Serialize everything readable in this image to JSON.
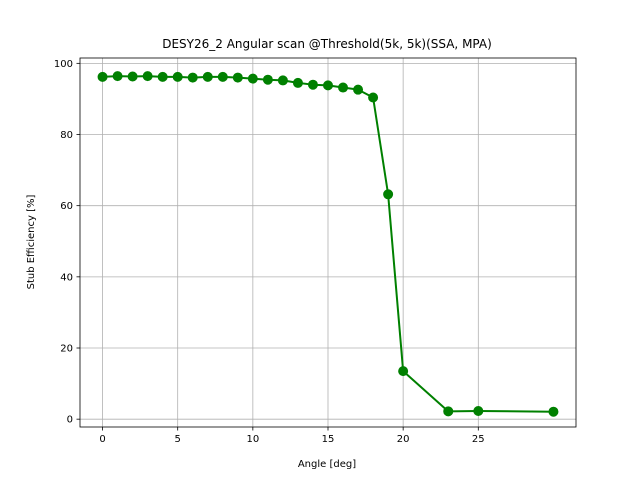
{
  "chart_data": {
    "type": "line",
    "title": "DESY26_2 Angular scan @Threshold(5k, 5k)(SSA, MPA)",
    "xlabel": "Angle [deg]",
    "ylabel": "Stub Efficiency [%]",
    "xlim": [
      -1.5,
      31.5
    ],
    "ylim": [
      -2.2,
      101.5
    ],
    "xticks": [
      0,
      5,
      10,
      15,
      20,
      25
    ],
    "yticks": [
      0,
      20,
      40,
      60,
      80,
      100
    ],
    "grid": true,
    "line_color": "#008000",
    "marker": "circle",
    "series": [
      {
        "x": [
          0,
          1,
          2,
          3,
          4,
          5,
          6,
          7,
          8,
          9,
          10,
          11,
          12,
          13,
          14,
          15,
          16,
          17,
          18,
          19,
          20,
          23,
          25,
          30
        ],
        "y": [
          96.2,
          96.4,
          96.3,
          96.4,
          96.2,
          96.2,
          96.0,
          96.2,
          96.2,
          96.0,
          95.7,
          95.4,
          95.2,
          94.5,
          94.0,
          93.8,
          93.2,
          92.6,
          90.4,
          63.2,
          13.5,
          2.2,
          2.3,
          2.1
        ]
      }
    ]
  }
}
